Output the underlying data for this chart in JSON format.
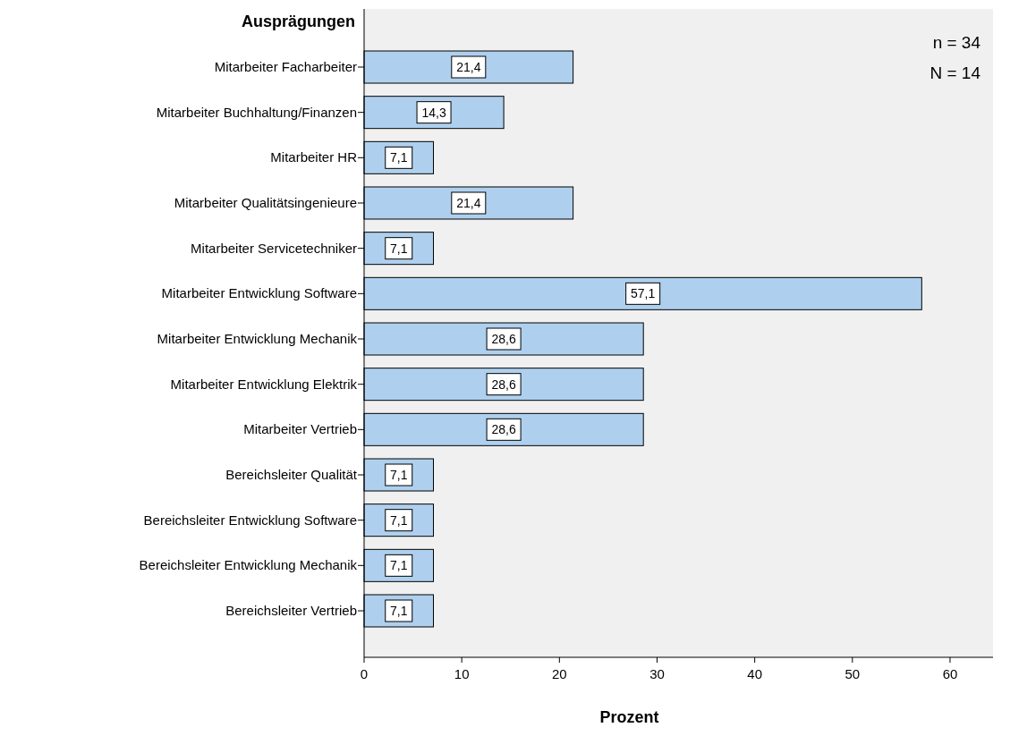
{
  "chart_data": {
    "type": "bar",
    "orientation": "horizontal",
    "ylabel": "Ausprägungen",
    "xlabel": "Prozent",
    "categories": [
      "Mitarbeiter Facharbeiter",
      "Mitarbeiter Buchhaltung/Finanzen",
      "Mitarbeiter HR",
      "Mitarbeiter Qualitätsingenieure",
      "Mitarbeiter Servicetechniker",
      "Mitarbeiter Entwicklung Software",
      "Mitarbeiter Entwicklung Mechanik",
      "Mitarbeiter Entwicklung Elektrik",
      "Mitarbeiter Vertrieb",
      "Bereichsleiter Qualität",
      "Bereichsleiter Entwicklung Software",
      "Bereichsleiter Entwicklung Mechanik",
      "Bereichsleiter Vertrieb"
    ],
    "values": [
      21.4,
      14.3,
      7.1,
      21.4,
      7.1,
      57.1,
      28.6,
      28.6,
      28.6,
      7.1,
      7.1,
      7.1,
      7.1
    ],
    "value_labels": [
      "21,4",
      "14,3",
      "7,1",
      "21,4",
      "7,1",
      "57,1",
      "28,6",
      "28,6",
      "28,6",
      "7,1",
      "7,1",
      "7,1",
      "7,1"
    ],
    "color": "#aed0ee",
    "xlim": [
      0,
      64.4
    ],
    "xticks": [
      0,
      10,
      20,
      30,
      40,
      50,
      60
    ],
    "annotations": [
      "n = 34",
      "N = 14"
    ]
  }
}
